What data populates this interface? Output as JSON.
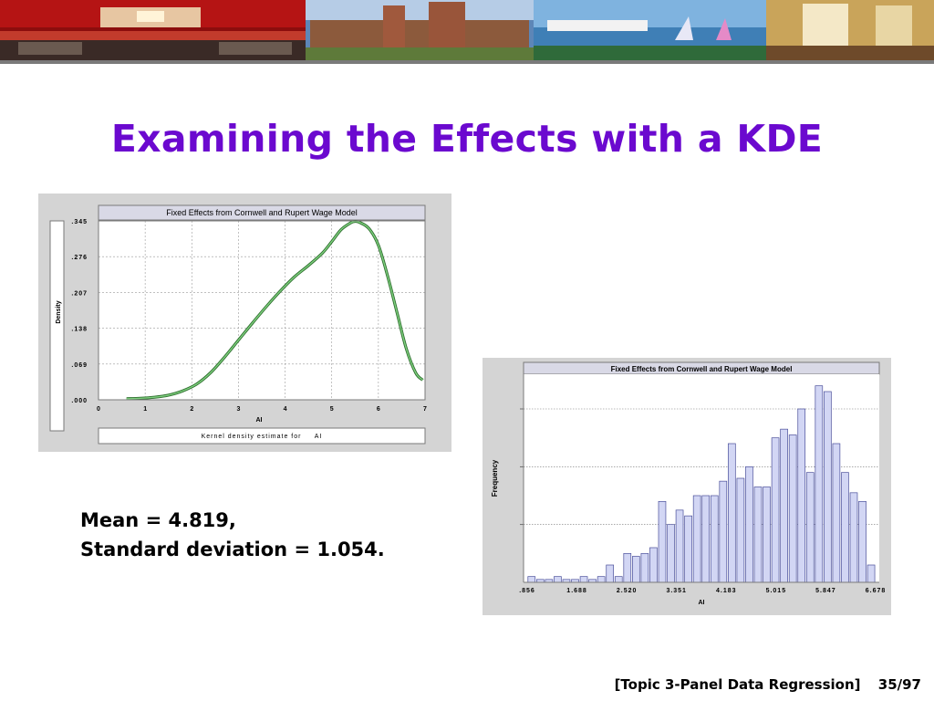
{
  "slide": {
    "title": "Examining the Effects with a KDE",
    "stats": [
      "Mean = 4.819,",
      "Standard deviation = 1.054."
    ],
    "footer_topic": "[Topic 3-Panel Data Regression]",
    "footer_page": "35/97"
  },
  "colors": {
    "title": "#6b09cf",
    "kde_line": "#4aa84a",
    "hist_bar_fill": "#d2d6f4",
    "hist_bar_stroke": "#4a4f9a",
    "panel_bg": "#d4d4d4",
    "plot_bg": "#ffffff"
  },
  "chart_data": [
    {
      "type": "line",
      "title": "Fixed Effects from Cornwell and Rupert Wage Model",
      "xlabel": "AI",
      "ylabel": "Density",
      "caption": "Kernel density estimate for     AI",
      "xlim": [
        0,
        7
      ],
      "ylim": [
        0,
        0.345
      ],
      "xticks": [
        "0",
        "1",
        "2",
        "3",
        "4",
        "5",
        "6",
        "7"
      ],
      "yticks": [
        ".000",
        ".069",
        ".138",
        ".207",
        ".276",
        ".345"
      ],
      "grid": true,
      "series": [
        {
          "x": [
            0.6,
            0.9,
            1.2,
            1.5,
            1.8,
            2.1,
            2.4,
            2.7,
            3.0,
            3.3,
            3.6,
            3.9,
            4.2,
            4.5,
            4.8,
            5.0,
            5.2,
            5.4,
            5.5,
            5.6,
            5.8,
            6.0,
            6.2,
            6.4,
            6.6,
            6.8,
            6.95
          ],
          "y": [
            0.002,
            0.003,
            0.005,
            0.009,
            0.017,
            0.03,
            0.052,
            0.082,
            0.115,
            0.148,
            0.18,
            0.21,
            0.237,
            0.259,
            0.283,
            0.305,
            0.328,
            0.341,
            0.344,
            0.342,
            0.33,
            0.298,
            0.238,
            0.168,
            0.098,
            0.052,
            0.038
          ]
        }
      ]
    },
    {
      "type": "bar",
      "title": "Fixed Effects from Cornwell and Rupert Wage Model",
      "xlabel": "AI",
      "ylabel": "Frequency",
      "xlim": [
        0.856,
        6.678
      ],
      "xticks": [
        ".856",
        "1.688",
        "2.520",
        "3.351",
        "4.183",
        "5.015",
        "5.847",
        "6.678"
      ],
      "grid": true,
      "yticks_labeled": false,
      "bin_start": 0.856,
      "bin_width": 0.1455,
      "values": [
        1,
        0.5,
        0.5,
        1,
        0.5,
        0.5,
        1,
        0.5,
        1,
        3,
        1,
        5,
        4.5,
        5,
        6,
        14,
        10,
        12.5,
        11.5,
        15,
        15,
        15,
        17.5,
        24,
        18,
        20,
        16.5,
        16.5,
        25,
        26.5,
        25.5,
        30,
        19,
        34,
        33,
        24,
        19,
        15.5,
        14,
        3
      ]
    }
  ]
}
